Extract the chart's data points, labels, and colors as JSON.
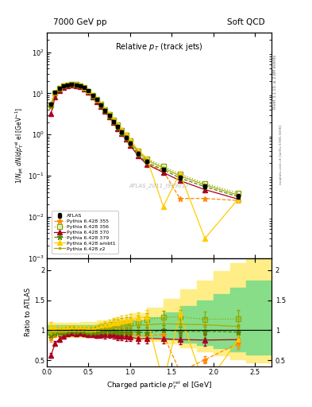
{
  "title_top_left": "7000 GeV pp",
  "title_top_right": "Soft QCD",
  "plot_title": "Relative p_{T} (track jets)",
  "ylabel_main": "1/N_{jet} dN/dp^{rel}_{T} el [GeV^{-1}]",
  "ylabel_ratio": "Ratio to ATLAS",
  "xlabel": "Charged particle p^{rel}_{T} el [GeV]",
  "watermark": "ATLAS_2011_I919017",
  "right_label_top": "Rivet 3.1.10, ≥ 2.6M events",
  "right_label_bottom": "mcplots.cern.ch [arXiv:1306.3436]",
  "atlas_x": [
    0.05,
    0.1,
    0.15,
    0.2,
    0.25,
    0.3,
    0.35,
    0.4,
    0.45,
    0.5,
    0.55,
    0.6,
    0.65,
    0.7,
    0.75,
    0.8,
    0.85,
    0.9,
    0.95,
    1.0,
    1.1,
    1.2,
    1.4,
    1.6,
    1.9,
    2.3
  ],
  "atlas_y": [
    5.5,
    10.5,
    13.5,
    15.5,
    16.2,
    16.5,
    16.2,
    15.2,
    13.8,
    11.5,
    9.0,
    7.0,
    5.2,
    3.9,
    2.9,
    2.1,
    1.55,
    1.15,
    0.85,
    0.62,
    0.35,
    0.22,
    0.14,
    0.09,
    0.055,
    0.032
  ],
  "atlas_yerr": [
    0.4,
    0.6,
    0.7,
    0.7,
    0.7,
    0.7,
    0.7,
    0.6,
    0.6,
    0.5,
    0.4,
    0.35,
    0.3,
    0.25,
    0.2,
    0.15,
    0.12,
    0.09,
    0.07,
    0.05,
    0.03,
    0.02,
    0.012,
    0.008,
    0.006,
    0.004
  ],
  "py355_x": [
    0.05,
    0.1,
    0.15,
    0.2,
    0.25,
    0.3,
    0.35,
    0.4,
    0.45,
    0.5,
    0.55,
    0.6,
    0.65,
    0.7,
    0.75,
    0.8,
    0.85,
    0.9,
    0.95,
    1.0,
    1.1,
    1.2,
    1.4,
    1.6,
    1.9,
    2.3
  ],
  "py355_y": [
    4.8,
    9.8,
    12.8,
    15.0,
    15.8,
    16.2,
    15.8,
    14.9,
    13.4,
    11.0,
    8.6,
    6.7,
    5.0,
    3.7,
    2.8,
    2.0,
    1.45,
    1.08,
    0.8,
    0.58,
    0.32,
    0.2,
    0.13,
    0.028,
    0.028,
    0.025
  ],
  "py355_color": "#ff8800",
  "py355_style": "--",
  "py355_marker": "*",
  "py356_x": [
    0.05,
    0.1,
    0.15,
    0.2,
    0.25,
    0.3,
    0.35,
    0.4,
    0.45,
    0.5,
    0.55,
    0.6,
    0.65,
    0.7,
    0.75,
    0.8,
    0.85,
    0.9,
    0.95,
    1.0,
    1.1,
    1.2,
    1.4,
    1.6,
    1.9,
    2.3
  ],
  "py356_y": [
    5.3,
    10.3,
    13.3,
    15.3,
    16.2,
    16.7,
    16.3,
    15.3,
    13.9,
    11.4,
    9.0,
    7.1,
    5.4,
    4.1,
    3.1,
    2.3,
    1.7,
    1.28,
    0.96,
    0.7,
    0.4,
    0.26,
    0.17,
    0.11,
    0.065,
    0.038
  ],
  "py356_color": "#88aa00",
  "py356_style": ":",
  "py356_marker": "s",
  "py370_x": [
    0.05,
    0.1,
    0.15,
    0.2,
    0.25,
    0.3,
    0.35,
    0.4,
    0.45,
    0.5,
    0.55,
    0.6,
    0.65,
    0.7,
    0.75,
    0.8,
    0.85,
    0.9,
    0.95,
    1.0,
    1.1,
    1.2,
    1.4,
    1.6,
    1.9,
    2.3
  ],
  "py370_y": [
    3.2,
    8.2,
    11.5,
    14.0,
    15.2,
    15.8,
    15.3,
    14.4,
    12.9,
    10.6,
    8.3,
    6.4,
    4.8,
    3.6,
    2.7,
    1.95,
    1.4,
    1.04,
    0.76,
    0.55,
    0.3,
    0.19,
    0.12,
    0.076,
    0.046,
    0.027
  ],
  "py370_color": "#aa0022",
  "py370_style": "-",
  "py370_marker": "^",
  "py379_x": [
    0.05,
    0.1,
    0.15,
    0.2,
    0.25,
    0.3,
    0.35,
    0.4,
    0.45,
    0.5,
    0.55,
    0.6,
    0.65,
    0.7,
    0.75,
    0.8,
    0.85,
    0.9,
    0.95,
    1.0,
    1.1,
    1.2,
    1.4,
    1.6,
    1.9,
    2.3
  ],
  "py379_y": [
    5.0,
    10.0,
    13.0,
    15.0,
    15.9,
    16.3,
    15.9,
    15.0,
    13.5,
    11.1,
    8.7,
    6.8,
    5.1,
    3.8,
    2.85,
    2.05,
    1.5,
    1.11,
    0.82,
    0.6,
    0.34,
    0.21,
    0.14,
    0.088,
    0.054,
    0.031
  ],
  "py379_color": "#558800",
  "py379_style": "--",
  "py379_marker": "*",
  "pyambt1_x": [
    0.05,
    0.1,
    0.15,
    0.2,
    0.25,
    0.3,
    0.35,
    0.4,
    0.45,
    0.5,
    0.55,
    0.6,
    0.65,
    0.7,
    0.75,
    0.8,
    0.85,
    0.9,
    0.95,
    1.0,
    1.1,
    1.2,
    1.4,
    1.6,
    1.9,
    2.3
  ],
  "pyambt1_y": [
    5.8,
    10.8,
    13.8,
    15.8,
    16.7,
    17.1,
    16.7,
    15.7,
    14.2,
    11.7,
    9.2,
    7.2,
    5.5,
    4.2,
    3.2,
    2.35,
    1.75,
    1.32,
    0.99,
    0.73,
    0.42,
    0.27,
    0.018,
    0.115,
    0.003,
    0.027
  ],
  "pyambt1_color": "#ffcc00",
  "pyambt1_style": "-",
  "pyambt1_marker": "^",
  "pyz2_x": [
    0.05,
    0.1,
    0.15,
    0.2,
    0.25,
    0.3,
    0.35,
    0.4,
    0.45,
    0.5,
    0.55,
    0.6,
    0.65,
    0.7,
    0.75,
    0.8,
    0.85,
    0.9,
    0.95,
    1.0,
    1.1,
    1.2,
    1.4,
    1.6,
    1.9,
    2.3
  ],
  "pyz2_y": [
    5.2,
    10.2,
    13.2,
    15.2,
    16.1,
    16.6,
    16.2,
    15.2,
    13.8,
    11.3,
    8.9,
    7.0,
    5.3,
    4.0,
    3.0,
    2.2,
    1.62,
    1.22,
    0.91,
    0.66,
    0.38,
    0.24,
    0.155,
    0.099,
    0.06,
    0.034
  ],
  "pyz2_color": "#aaaa00",
  "pyz2_style": "-",
  "pyz2_marker": ".",
  "xlim": [
    0.0,
    2.7
  ],
  "ylim_main": [
    0.001,
    300
  ],
  "ylim_ratio": [
    0.4,
    2.2
  ],
  "band_yellow_bins": [
    0.0,
    0.2,
    0.4,
    0.6,
    0.8,
    1.0,
    1.2,
    1.4,
    1.6,
    1.8,
    2.0,
    2.2,
    2.4,
    2.7
  ],
  "band_yellow_lo": [
    0.88,
    0.88,
    0.88,
    0.88,
    0.88,
    0.85,
    0.82,
    0.78,
    0.72,
    0.65,
    0.58,
    0.52,
    0.46
  ],
  "band_yellow_hi": [
    1.12,
    1.12,
    1.14,
    1.16,
    1.2,
    1.28,
    1.38,
    1.52,
    1.68,
    1.82,
    1.98,
    2.12,
    2.28
  ],
  "band_green_bins": [
    0.0,
    0.2,
    0.4,
    0.6,
    0.8,
    1.0,
    1.2,
    1.4,
    1.6,
    1.8,
    2.0,
    2.2,
    2.4,
    2.7
  ],
  "band_green_lo": [
    0.92,
    0.92,
    0.92,
    0.92,
    0.92,
    0.9,
    0.88,
    0.85,
    0.8,
    0.75,
    0.7,
    0.65,
    0.6
  ],
  "band_green_hi": [
    1.08,
    1.08,
    1.09,
    1.1,
    1.12,
    1.16,
    1.22,
    1.3,
    1.4,
    1.5,
    1.6,
    1.7,
    1.82
  ]
}
